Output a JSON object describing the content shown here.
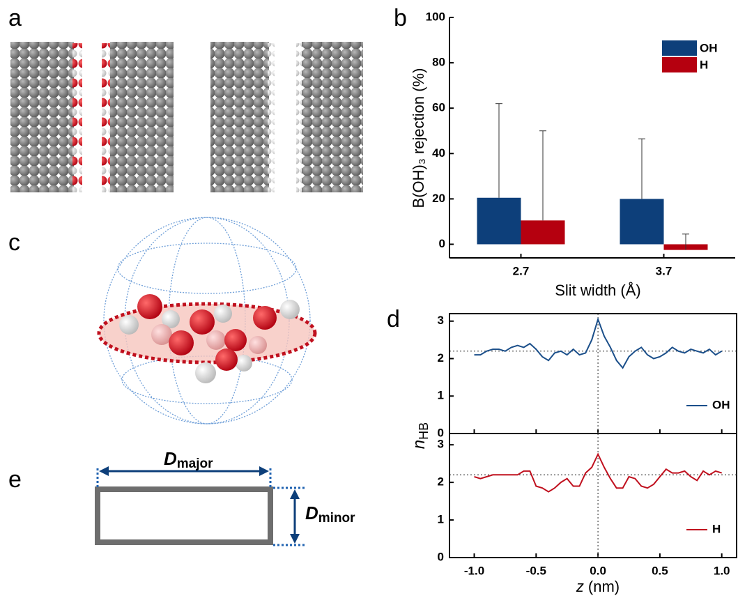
{
  "panel_labels": {
    "a": "a",
    "b": "b",
    "c": "c",
    "d": "d",
    "e": "e"
  },
  "diagram_e": {
    "major": {
      "symbol": "D",
      "subscript": "major"
    },
    "minor": {
      "symbol": "D",
      "subscript": "minor"
    }
  },
  "chart_data": [
    {
      "type": "bar",
      "y_label": "B(OH)₃ rejection (%)",
      "x_label": "Slit width (Å)",
      "categories": [
        "2.7",
        "3.7"
      ],
      "series": [
        {
          "name": "OH",
          "color": "#0d3f7a",
          "values": [
            20.5,
            20
          ],
          "errors": [
            41.5,
            26.5
          ]
        },
        {
          "name": "H",
          "color": "#b5000f",
          "values": [
            10.5,
            -2.5
          ],
          "errors": [
            39.5,
            7
          ]
        }
      ],
      "ylim": [
        -6,
        100
      ],
      "yticks": [
        0,
        20,
        40,
        60,
        80,
        100
      ],
      "legend": "upper right"
    },
    {
      "type": "line",
      "y_label": "n",
      "y_label_subscript": "HB",
      "x": [
        -1,
        -0.95,
        -0.9,
        -0.85,
        -0.8,
        -0.75,
        -0.7,
        -0.65,
        -0.6,
        -0.55,
        -0.5,
        -0.45,
        -0.4,
        -0.35,
        -0.3,
        -0.25,
        -0.2,
        -0.15,
        -0.1,
        -0.05,
        0,
        0.05,
        0.1,
        0.15,
        0.2,
        0.25,
        0.3,
        0.35,
        0.4,
        0.45,
        0.5,
        0.55,
        0.6,
        0.65,
        0.7,
        0.75,
        0.8,
        0.85,
        0.9,
        0.95,
        1
      ],
      "series": [
        {
          "name": "OH",
          "color": "#1b4f8a",
          "values": [
            2.1,
            2.1,
            2.2,
            2.25,
            2.25,
            2.2,
            2.3,
            2.35,
            2.3,
            2.4,
            2.25,
            2.05,
            1.95,
            2.15,
            2.2,
            2.1,
            2.25,
            2.1,
            2.15,
            2.5,
            3.05,
            2.6,
            2.3,
            1.95,
            1.75,
            2.05,
            2.2,
            2.3,
            2.1,
            2.0,
            2.05,
            2.15,
            2.3,
            2.2,
            2.15,
            2.25,
            2.2,
            2.15,
            2.25,
            2.1,
            2.2
          ]
        }
      ],
      "xlim": [
        -1.2,
        1.12
      ],
      "ylim": [
        0,
        3.2
      ],
      "yticks": [
        0,
        1,
        2,
        3
      ],
      "hline": 2.2,
      "vline": 0,
      "legend": "lower right"
    },
    {
      "type": "line",
      "x_label": "z",
      "x_label_unit": "(nm)",
      "x": [
        -1,
        -0.95,
        -0.9,
        -0.85,
        -0.8,
        -0.75,
        -0.7,
        -0.65,
        -0.6,
        -0.55,
        -0.5,
        -0.45,
        -0.4,
        -0.35,
        -0.3,
        -0.25,
        -0.2,
        -0.15,
        -0.1,
        -0.05,
        0,
        0.05,
        0.1,
        0.15,
        0.2,
        0.25,
        0.3,
        0.35,
        0.4,
        0.45,
        0.5,
        0.55,
        0.6,
        0.65,
        0.7,
        0.75,
        0.8,
        0.85,
        0.9,
        0.95,
        1
      ],
      "series": [
        {
          "name": "H",
          "color": "#c0101e",
          "values": [
            2.15,
            2.1,
            2.15,
            2.2,
            2.2,
            2.2,
            2.2,
            2.2,
            2.3,
            2.3,
            1.9,
            1.85,
            1.75,
            1.85,
            2.0,
            2.1,
            1.9,
            1.9,
            2.25,
            2.4,
            2.75,
            2.4,
            2.1,
            1.85,
            1.85,
            2.15,
            2.1,
            1.9,
            1.85,
            1.95,
            2.15,
            2.35,
            2.25,
            2.25,
            2.3,
            2.15,
            2.05,
            2.3,
            2.2,
            2.3,
            2.25
          ]
        }
      ],
      "xlim": [
        -1.2,
        1.12
      ],
      "ylim": [
        0,
        3.3
      ],
      "yticks": [
        0,
        1,
        2,
        3
      ],
      "xticks": [
        {
          "value": -1,
          "label": "-1.0"
        },
        -0.5,
        {
          "value": 0,
          "label": "0.0"
        },
        0.5,
        {
          "value": 1,
          "label": "1.0"
        }
      ],
      "hline": 2.2,
      "vline": 0,
      "legend": "lower right"
    }
  ]
}
